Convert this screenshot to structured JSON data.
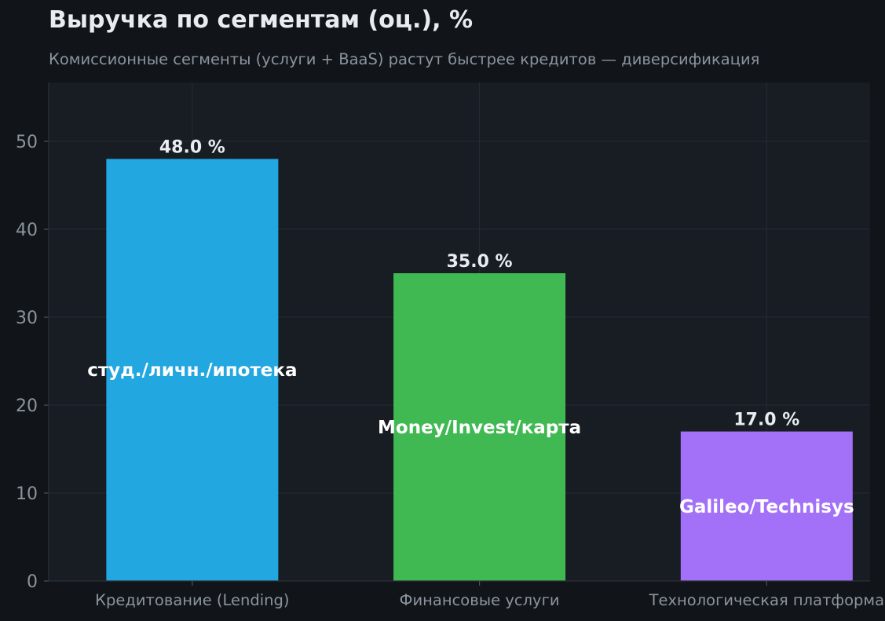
{
  "title": "Выручка по сегментам (оц.), %",
  "subtitle": "Комиссионные сегменты (услуги + BaaS) растут быстрее кредитов — диверсификация",
  "colors": {
    "page_bg": "#111519",
    "plot_bg": "#181c23",
    "grid": "#262c35",
    "tick_text": "#8b949e",
    "label_text": "#e9edf2"
  },
  "chart_data": {
    "type": "bar",
    "categories": [
      "Кредитование (Lending)",
      "Финансовые услуги",
      "Технологическая платформа"
    ],
    "values": [
      48.0,
      35.0,
      17.0
    ],
    "value_labels": [
      "48.0 %",
      "35.0 %",
      "17.0 %"
    ],
    "bar_annotations": [
      "студ./личн./ипотека",
      "Money/Invest/карта",
      "Galileo/Technisys"
    ],
    "bar_colors": [
      "#22a7e0",
      "#41b953",
      "#a371f7"
    ],
    "yticks": [
      0,
      10,
      20,
      30,
      40,
      50
    ],
    "ylim": [
      0,
      56.7
    ],
    "grid": true,
    "xlabel": "",
    "ylabel": ""
  }
}
